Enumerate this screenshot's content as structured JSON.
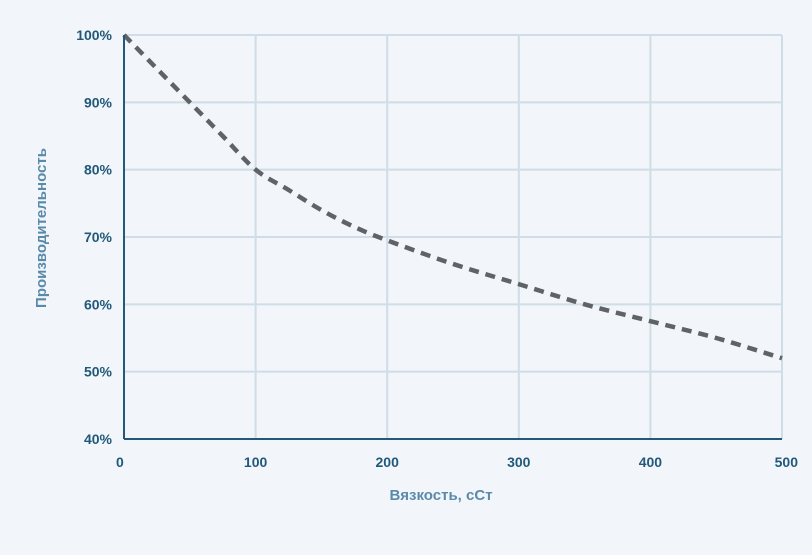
{
  "chart_data": {
    "type": "line",
    "xlabel": "Вязкость, сСт",
    "ylabel": "Производительность",
    "xlim": [
      0,
      500
    ],
    "ylim": [
      40,
      100
    ],
    "x_ticks": [
      0,
      100,
      200,
      300,
      400,
      500
    ],
    "y_ticks": [
      40,
      50,
      60,
      70,
      80,
      90,
      100
    ],
    "x_tick_labels": [
      "0",
      "100",
      "200",
      "300",
      "400",
      "500"
    ],
    "y_tick_labels": [
      "40%",
      "50%",
      "60%",
      "70%",
      "80%",
      "90%",
      "100%"
    ],
    "grid": true,
    "series": [
      {
        "x": [
          0,
          25,
          50,
          75,
          100,
          125,
          150,
          175,
          200,
          250,
          300,
          350,
          400,
          450,
          500
        ],
        "y": [
          100,
          95,
          90,
          85,
          80,
          77,
          74,
          71.5,
          69.5,
          66,
          63,
          60,
          57.5,
          55,
          52
        ],
        "style": "dashed",
        "color": "#5f6266"
      }
    ]
  }
}
